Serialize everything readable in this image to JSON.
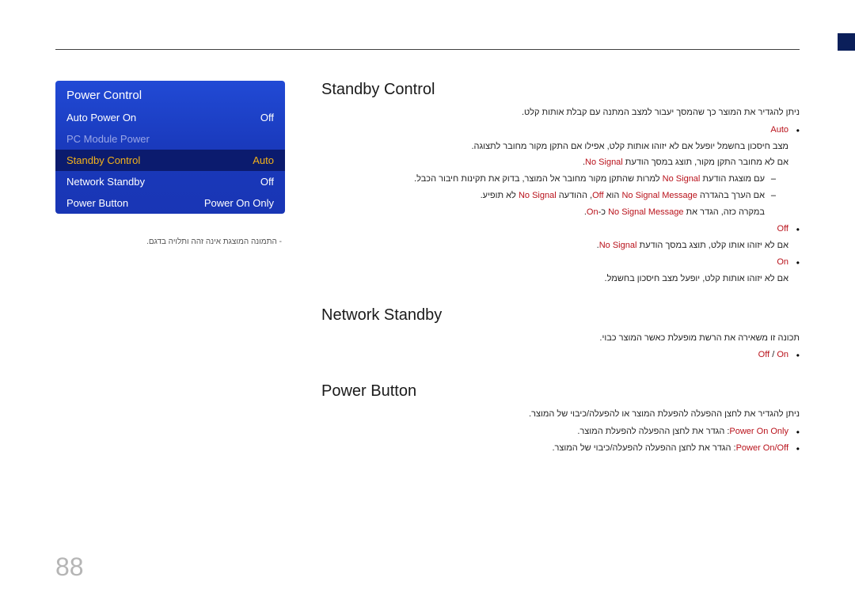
{
  "panel": {
    "title": "Power Control",
    "bg_gradient": [
      "#214ad5",
      "#1938ba",
      "#1936b5"
    ],
    "selected_bg": "#0b1b6e",
    "selected_color": "#f3b21a",
    "muted_color": "#9aa6e6",
    "rows": [
      {
        "label": "Auto Power On",
        "value": "Off",
        "state": "normal"
      },
      {
        "label": "PC Module Power",
        "value": "",
        "state": "muted"
      },
      {
        "label": "Standby Control",
        "value": "Auto",
        "state": "selected"
      },
      {
        "label": "Network Standby",
        "value": "Off",
        "state": "normal"
      },
      {
        "label": "Power Button",
        "value": "Power On Only",
        "state": "normal"
      }
    ]
  },
  "note": "התמונה המוצגת אינה זהה ותלויה בדגם.",
  "sections": {
    "standby": {
      "title": "Standby Control",
      "intro": "ניתן להגדיר את המוצר כך שהמסך יעבור למצב המתנה עם קבלת אותות קלט.",
      "items": {
        "auto": {
          "kw": "Auto",
          "line1_a": "מצב חיסכון בחשמל יופעל אם לא יזוהו אותות קלט, אפילו אם התקן מקור מחובר לתצוגה.",
          "line2_a": "אם לא מחובר התקן מקור, תוצג במסך הודעת ",
          "line2_kw": "No Signal",
          "line2_b": ".",
          "dash1_a": "עם מוצגת הודעת ",
          "dash1_kw1": "No Signal",
          "dash1_b": " למרות שהתקן מקור מחובר אל המוצר, בדוק את תקינות חיבור הכבל.",
          "dash2_a": "אם הערך בהגדרה ",
          "dash2_kw1": "No Signal Message",
          "dash2_b": " הוא ",
          "dash2_kw2": "Off",
          "dash2_c": ", ההודעה ",
          "dash2_kw3": "No Signal",
          "dash2_d": " לא תופיע.",
          "dash3_a": "במקרה כזה, הגדר את ",
          "dash3_kw": "No Signal Message",
          "dash3_b": " כ-",
          "dash3_kw2": "On",
          "dash3_c": "."
        },
        "off": {
          "kw": "Off",
          "line_a": "אם לא יזוהו אותו קלט, תוצג במסך הודעת ",
          "line_kw": "No Signal",
          "line_b": "."
        },
        "on": {
          "kw": "On",
          "line": "אם לא יזוהו אותות קלט, יופעל מצב חיסכון בחשמל."
        }
      }
    },
    "network": {
      "title": "Network Standby",
      "intro": "תכונה זו משאירה את הרשת מופעלת כאשר המוצר כבוי.",
      "opt_kw1": "Off",
      "opt_sep": " / ",
      "opt_kw2": "On"
    },
    "powerbtn": {
      "title": "Power Button",
      "intro": "ניתן להגדיר את לחצן ההפעלה להפעלת המוצר או להפעלה/כיבוי של המוצר.",
      "opt1_kw": "Power On Only",
      "opt1_txt": ": הגדר את לחצן ההפעלה להפעלת המוצר.",
      "opt2_kw": "Power On/Off",
      "opt2_txt": ": הגדר את לחצן ההפעלה להפעלה/כיבוי של המוצר."
    }
  },
  "page_number": "88"
}
